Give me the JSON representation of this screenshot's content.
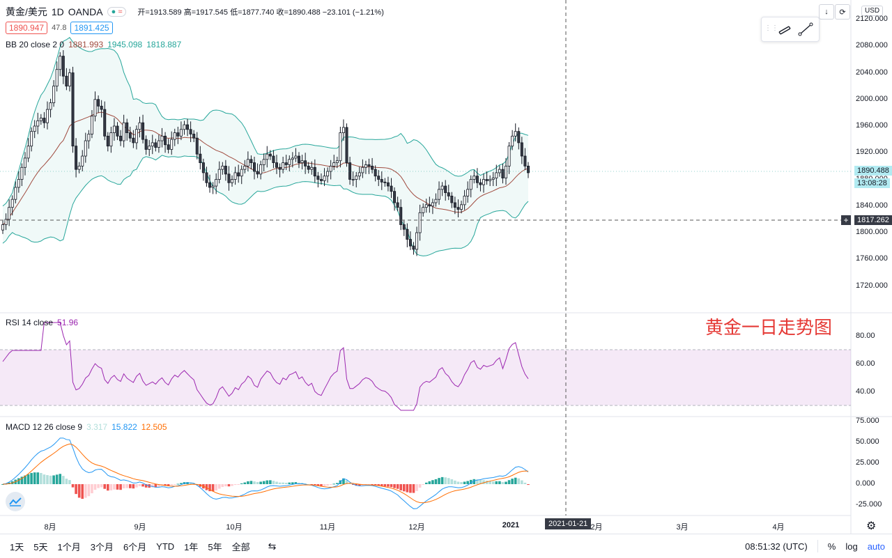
{
  "header": {
    "symbol": "黄金/美元",
    "interval": "1D",
    "broker": "OANDA",
    "status_icon": "≈",
    "ohlc": "开=1913.589  高=1917.545  低=1877.740  收=1890.488  −23.101 (−1.21%)",
    "sell_price": "1890.947",
    "spread": "47.8",
    "buy_price": "1891.425"
  },
  "indicators": {
    "bb": {
      "label": "BB 20 close 2 0",
      "basis": "1881.993",
      "upper": "1945.098",
      "lower": "1818.887"
    },
    "rsi": {
      "label": "RSI 14 close",
      "value": "51.96"
    },
    "macd": {
      "label": "MACD 12 26 close 9",
      "hist": "3.317",
      "macd": "15.822",
      "signal": "12.505"
    }
  },
  "annotation": "黄金一日走势图",
  "currency": "USD",
  "price_axis": [
    "2120.000",
    "2080.000",
    "2040.000",
    "2000.000",
    "1960.000",
    "1920.000",
    "1880.000",
    "1840.000",
    "1800.000",
    "1760.000",
    "1720.000"
  ],
  "rsi_axis": [
    "80.00",
    "60.00",
    "40.00"
  ],
  "macd_axis": [
    "75.000",
    "50.000",
    "25.000",
    "0.000",
    "-25.000"
  ],
  "price_labels": {
    "last": "1890.488",
    "countdown": "13:08:28",
    "crosshair": "1817.262"
  },
  "time_axis": [
    "8月",
    "9月",
    "10月",
    "11月",
    "12月",
    "2021",
    "2月",
    "3月",
    "4月"
  ],
  "crosshair_date": "2021-01-21",
  "bottom": {
    "ranges": [
      "1天",
      "5天",
      "1个月",
      "3个月",
      "6个月",
      "YTD",
      "1年",
      "5年",
      "全部"
    ],
    "clock": "08:51:32 (UTC)",
    "percent": "%",
    "log": "log",
    "auto": "auto"
  },
  "colors": {
    "up": "#26a69a",
    "down": "#ef5350",
    "bb_line": "#26a69a",
    "basis": "#a04b3f",
    "rsi": "#9c27b0",
    "macd": "#2196f3",
    "signal": "#ff6d00",
    "annotation": "#e53935"
  },
  "chart_data": {
    "type": "candlestick",
    "close": [
      1812,
      1820,
      1838,
      1850,
      1868,
      1880,
      1898,
      1912,
      1930,
      1952,
      1960,
      1968,
      1972,
      1965,
      1985,
      1995,
      2020,
      2045,
      2065,
      2035,
      2020,
      2040,
      1930,
      1895,
      1900,
      1915,
      1938,
      1948,
      1975,
      2000,
      1990,
      1985,
      1945,
      1930,
      1950,
      1960,
      1945,
      1938,
      1965,
      1950,
      1942,
      1935,
      1955,
      1965,
      1940,
      1925,
      1930,
      1935,
      1928,
      1938,
      1945,
      1932,
      1925,
      1940,
      1950,
      1945,
      1955,
      1962,
      1955,
      1948,
      1942,
      1918,
      1905,
      1890,
      1875,
      1868,
      1870,
      1880,
      1895,
      1900,
      1888,
      1875,
      1880,
      1890,
      1885,
      1895,
      1900,
      1910,
      1905,
      1892,
      1888,
      1902,
      1910,
      1918,
      1915,
      1905,
      1898,
      1895,
      1905,
      1902,
      1910,
      1912,
      1915,
      1905,
      1908,
      1900,
      1895,
      1898,
      1885,
      1880,
      1878,
      1885,
      1892,
      1900,
      1905,
      1908,
      1950,
      1958,
      1905,
      1880,
      1880,
      1885,
      1890,
      1898,
      1902,
      1900,
      1895,
      1885,
      1880,
      1876,
      1875,
      1870,
      1862,
      1845,
      1838,
      1812,
      1805,
      1790,
      1780,
      1775,
      1800,
      1830,
      1838,
      1842,
      1840,
      1845,
      1850,
      1865,
      1870,
      1860,
      1855,
      1845,
      1838,
      1835,
      1842,
      1855,
      1865,
      1880,
      1885,
      1875,
      1872,
      1880,
      1878,
      1880,
      1882,
      1890,
      1895,
      1882,
      1900,
      1930,
      1945,
      1952,
      1935,
      1915,
      1900,
      1890
    ]
  }
}
